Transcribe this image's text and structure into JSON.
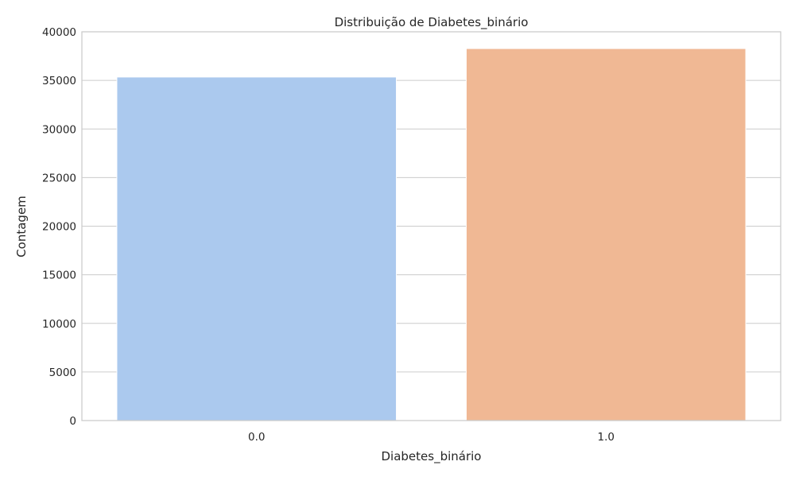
{
  "chart_data": {
    "type": "bar",
    "title": "Distribuição de Diabetes_binário",
    "xlabel": "Diabetes_binário",
    "ylabel": "Contagem",
    "categories": [
      "0.0",
      "1.0"
    ],
    "values": [
      35346,
      38276
    ],
    "colors": [
      "#abc9ee",
      "#f0b894"
    ],
    "ylim": [
      0,
      40000
    ],
    "yticks": [
      0,
      5000,
      10000,
      15000,
      20000,
      25000,
      30000,
      35000,
      40000
    ],
    "grid": "horizontal",
    "legend": "none"
  }
}
